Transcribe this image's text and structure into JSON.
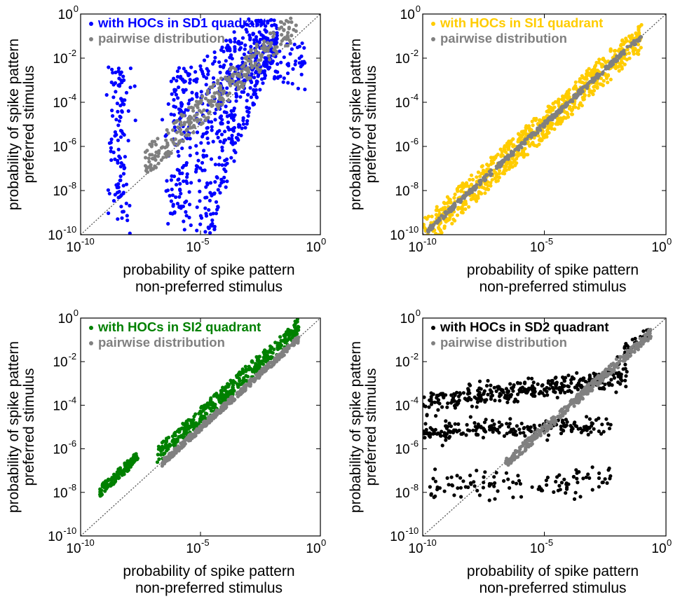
{
  "chart_data": [
    {
      "type": "scatter",
      "panel": "top-left",
      "xlabel": [
        "probability of spike pattern",
        "non-preferred stimulus"
      ],
      "ylabel": [
        "probability of spike pattern",
        "preferred stimulus"
      ],
      "xscale": "log",
      "yscale": "log",
      "xlim_exp": [
        -10,
        0
      ],
      "ylim_exp": [
        -10,
        0
      ],
      "x_ticks": [
        {
          "base": "10",
          "exp": "-10"
        },
        {
          "base": "10",
          "exp": "-5"
        },
        {
          "base": "10",
          "exp": "0"
        }
      ],
      "y_ticks": [
        {
          "base": "10",
          "exp": "0"
        },
        {
          "base": "10",
          "exp": "-2"
        },
        {
          "base": "10",
          "exp": "-4"
        },
        {
          "base": "10",
          "exp": "-6"
        },
        {
          "base": "10",
          "exp": "-8"
        },
        {
          "base": "10",
          "exp": "-10"
        }
      ],
      "grid": false,
      "diagonal": true,
      "legend_position": "top-left",
      "series": [
        {
          "name": "with HOCs in SD1 quadrant",
          "color": "#0000ff",
          "seed": 11,
          "clusters": [
            {
              "kind": "band",
              "n": 520,
              "x": [
                -5.2,
                -1.8
              ],
              "yoff_top": [
                -3.5,
                -0.2
              ],
              "ybase": -0.25
            },
            {
              "kind": "column",
              "n": 110,
              "xc": -8.4,
              "xs": 0.22,
              "y": [
                -10,
                -2.4
              ]
            },
            {
              "kind": "column",
              "n": 150,
              "xc": -5.8,
              "xs": 0.3,
              "y": [
                -10,
                -2.4
              ]
            },
            {
              "kind": "cloud",
              "n": 60,
              "x": [
                -2.8,
                -0.5
              ],
              "y": [
                -3.5,
                -1.3
              ]
            }
          ]
        },
        {
          "name": "pairwise distribution",
          "color": "#808080",
          "seed": 12,
          "clusters": [
            {
              "kind": "diag",
              "n": 330,
              "x": [
                -7.3,
                -1.0
              ],
              "ylo": -0.1,
              "yhi": 1.3
            }
          ]
        }
      ]
    },
    {
      "type": "scatter",
      "panel": "top-right",
      "xlabel": [
        "probability of spike pattern",
        "non-preferred stimulus"
      ],
      "ylabel": [
        "probability of spike pattern",
        "preferred stimulus"
      ],
      "xscale": "log",
      "yscale": "log",
      "xlim_exp": [
        -10,
        0
      ],
      "ylim_exp": [
        -10,
        0
      ],
      "x_ticks": [
        {
          "base": "10",
          "exp": "-10"
        },
        {
          "base": "10",
          "exp": "-5"
        },
        {
          "base": "10",
          "exp": "0"
        }
      ],
      "y_ticks": [
        {
          "base": "10",
          "exp": "0"
        },
        {
          "base": "10",
          "exp": "-2"
        },
        {
          "base": "10",
          "exp": "-4"
        },
        {
          "base": "10",
          "exp": "-6"
        },
        {
          "base": "10",
          "exp": "-8"
        },
        {
          "base": "10",
          "exp": "-10"
        }
      ],
      "grid": false,
      "diagonal": true,
      "legend_position": "top-left",
      "series": [
        {
          "name": "with HOCs in SI1 quadrant",
          "color": "#ffcc00",
          "seed": 21,
          "clusters": [
            {
              "kind": "diag",
              "n": 760,
              "x": [
                -10,
                -1.0
              ],
              "ylo": -0.7,
              "yhi": 0.7
            }
          ]
        },
        {
          "name": "pairwise distribution",
          "color": "#808080",
          "seed": 22,
          "clusters": [
            {
              "kind": "diag",
              "n": 350,
              "x": [
                -9.8,
                -1.0
              ],
              "ylo": -0.12,
              "yhi": 0.12
            }
          ]
        }
      ]
    },
    {
      "type": "scatter",
      "panel": "bottom-left",
      "xlabel": [
        "probability of spike pattern",
        "non-preferred stimulus"
      ],
      "ylabel": [
        "probability of spike pattern",
        "preferred stimulus"
      ],
      "xscale": "log",
      "yscale": "log",
      "xlim_exp": [
        -10,
        0
      ],
      "ylim_exp": [
        -10,
        0
      ],
      "x_ticks": [
        {
          "base": "10",
          "exp": "-10"
        },
        {
          "base": "10",
          "exp": "-5"
        },
        {
          "base": "10",
          "exp": "0"
        }
      ],
      "y_ticks": [
        {
          "base": "10",
          "exp": "0"
        },
        {
          "base": "10",
          "exp": "-2"
        },
        {
          "base": "10",
          "exp": "-4"
        },
        {
          "base": "10",
          "exp": "-6"
        },
        {
          "base": "10",
          "exp": "-8"
        },
        {
          "base": "10",
          "exp": "-10"
        }
      ],
      "grid": false,
      "diagonal": true,
      "legend_position": "top-left",
      "series": [
        {
          "name": "with HOCs in SI2 quadrant",
          "color": "#008000",
          "seed": 31,
          "clusters": [
            {
              "kind": "diag",
              "n": 120,
              "x": [
                -9.2,
                -7.6
              ],
              "ylo": 1.0,
              "yhi": 1.5
            },
            {
              "kind": "diag",
              "n": 420,
              "x": [
                -6.8,
                -0.9
              ],
              "ylo": 0.1,
              "yhi": 0.9
            }
          ]
        },
        {
          "name": "pairwise distribution",
          "color": "#808080",
          "seed": 32,
          "clusters": [
            {
              "kind": "diag",
              "n": 380,
              "x": [
                -6.6,
                -0.9
              ],
              "ylo": -0.2,
              "yhi": 0.1
            }
          ]
        }
      ]
    },
    {
      "type": "scatter",
      "panel": "bottom-right",
      "xlabel": [
        "probability of spike pattern",
        "non-preferred stimulus"
      ],
      "ylabel": [
        "probability of spike pattern",
        "preferred stimulus"
      ],
      "xscale": "log",
      "yscale": "log",
      "xlim_exp": [
        -10,
        0
      ],
      "ylim_exp": [
        -10,
        0
      ],
      "x_ticks": [
        {
          "base": "10",
          "exp": "-10"
        },
        {
          "base": "10",
          "exp": "-5"
        },
        {
          "base": "10",
          "exp": "0"
        }
      ],
      "y_ticks": [
        {
          "base": "10",
          "exp": "0"
        },
        {
          "base": "10",
          "exp": "-2"
        },
        {
          "base": "10",
          "exp": "-4"
        },
        {
          "base": "10",
          "exp": "-6"
        },
        {
          "base": "10",
          "exp": "-8"
        },
        {
          "base": "10",
          "exp": "-10"
        }
      ],
      "grid": false,
      "diagonal": true,
      "legend_position": "top-left",
      "series": [
        {
          "name": "with HOCs in SD2 quadrant",
          "color": "#000000",
          "seed": 41,
          "clusters": [
            {
              "kind": "trend",
              "n": 330,
              "x": [
                -10,
                -1.6
              ],
              "y0": -3.9,
              "y1": -2.7,
              "spread": 0.25
            },
            {
              "kind": "trend",
              "n": 210,
              "x": [
                -10,
                -2.2
              ],
              "y0": -5.2,
              "y1": -4.9,
              "spread": 0.22
            },
            {
              "kind": "trend",
              "n": 110,
              "x": [
                -9.8,
                -2.2
              ],
              "y0": -7.7,
              "y1": -7.5,
              "spread": 0.35
            },
            {
              "kind": "diag",
              "n": 40,
              "x": [
                -2.0,
                -0.6
              ],
              "ylo": -0.2,
              "yhi": 0.5
            }
          ]
        },
        {
          "name": "pairwise distribution",
          "color": "#808080",
          "seed": 42,
          "clusters": [
            {
              "kind": "diag",
              "n": 360,
              "x": [
                -6.6,
                -0.6
              ],
              "ylo": -0.3,
              "yhi": 0.15
            }
          ]
        }
      ]
    }
  ]
}
